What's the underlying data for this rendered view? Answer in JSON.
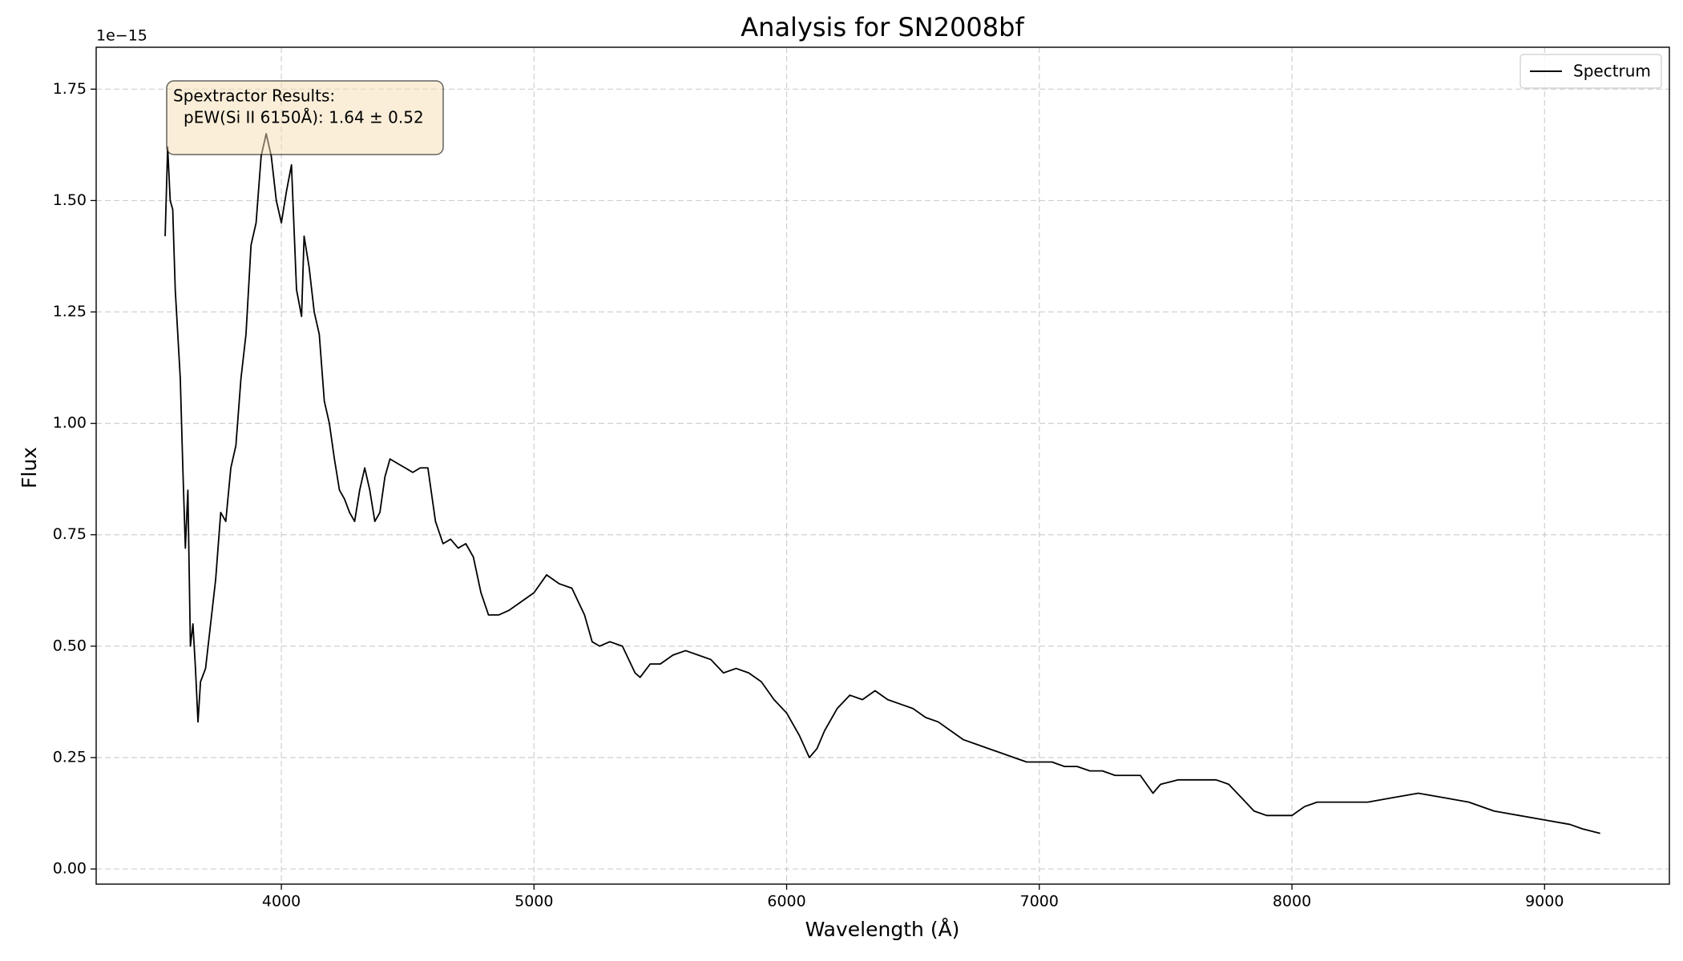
{
  "chart_data": {
    "type": "line",
    "title": "Analysis for SN2008bf",
    "x_label": "Wavelength (Å)",
    "y_label": "Flux",
    "y_offset_label": "1e−15",
    "annotation": [
      "Spextractor Results:",
      "pEW(Si II 6150Å): 1.64 ± 0.52"
    ],
    "legend": "upper right",
    "grid": true,
    "xlim": [
      3267,
      9494
    ],
    "ylim": [
      -0.034,
      1.844
    ],
    "xticks": [
      4000,
      5000,
      6000,
      7000,
      8000,
      9000
    ],
    "yticks": [
      {
        "value": 0,
        "label": "0.00"
      },
      {
        "value": 0.25,
        "label": "0.25"
      },
      {
        "value": 0.5,
        "label": "0.50"
      },
      {
        "value": 0.75,
        "label": "0.75"
      },
      {
        "value": 1,
        "label": "1.00"
      },
      {
        "value": 1.25,
        "label": "1.25"
      },
      {
        "value": 1.5,
        "label": "1.50"
      },
      {
        "value": 1.75,
        "label": "1.75"
      }
    ],
    "x": [
      3540,
      3550,
      3560,
      3570,
      3580,
      3590,
      3600,
      3610,
      3620,
      3630,
      3640,
      3650,
      3660,
      3670,
      3680,
      3700,
      3720,
      3740,
      3760,
      3780,
      3800,
      3820,
      3840,
      3860,
      3880,
      3900,
      3920,
      3940,
      3960,
      3980,
      4000,
      4020,
      4040,
      4060,
      4080,
      4090,
      4110,
      4130,
      4150,
      4170,
      4190,
      4210,
      4230,
      4250,
      4270,
      4290,
      4310,
      4330,
      4350,
      4370,
      4390,
      4410,
      4430,
      4460,
      4490,
      4520,
      4550,
      4580,
      4610,
      4640,
      4670,
      4700,
      4730,
      4760,
      4790,
      4820,
      4860,
      4900,
      4950,
      5000,
      5050,
      5100,
      5150,
      5200,
      5230,
      5260,
      5300,
      5350,
      5400,
      5420,
      5460,
      5500,
      5550,
      5600,
      5650,
      5700,
      5750,
      5800,
      5850,
      5900,
      5950,
      6000,
      6050,
      6090,
      6120,
      6150,
      6200,
      6250,
      6300,
      6350,
      6400,
      6450,
      6500,
      6550,
      6600,
      6650,
      6700,
      6750,
      6800,
      6850,
      6900,
      6950,
      7000,
      7050,
      7100,
      7150,
      7200,
      7250,
      7300,
      7350,
      7400,
      7450,
      7480,
      7550,
      7600,
      7650,
      7700,
      7750,
      7800,
      7850,
      7900,
      7950,
      8000,
      8050,
      8100,
      8200,
      8300,
      8400,
      8500,
      8600,
      8700,
      8800,
      8900,
      9000,
      9100,
      9150,
      9220
    ],
    "series": [
      {
        "name": "Spectrum",
        "color": "#000000",
        "values": [
          1.42,
          1.62,
          1.5,
          1.48,
          1.3,
          1.2,
          1.1,
          0.9,
          0.72,
          0.85,
          0.5,
          0.55,
          0.45,
          0.33,
          0.42,
          0.45,
          0.55,
          0.65,
          0.8,
          0.78,
          0.9,
          0.95,
          1.1,
          1.2,
          1.4,
          1.45,
          1.6,
          1.65,
          1.6,
          1.5,
          1.45,
          1.52,
          1.58,
          1.3,
          1.24,
          1.42,
          1.35,
          1.25,
          1.2,
          1.05,
          1.0,
          0.92,
          0.85,
          0.83,
          0.8,
          0.78,
          0.85,
          0.9,
          0.85,
          0.78,
          0.8,
          0.88,
          0.92,
          0.91,
          0.9,
          0.89,
          0.9,
          0.9,
          0.78,
          0.73,
          0.74,
          0.72,
          0.73,
          0.7,
          0.62,
          0.57,
          0.57,
          0.58,
          0.6,
          0.62,
          0.66,
          0.64,
          0.63,
          0.57,
          0.51,
          0.5,
          0.51,
          0.5,
          0.44,
          0.43,
          0.46,
          0.46,
          0.48,
          0.49,
          0.48,
          0.47,
          0.44,
          0.45,
          0.44,
          0.42,
          0.38,
          0.35,
          0.3,
          0.25,
          0.27,
          0.31,
          0.36,
          0.39,
          0.38,
          0.4,
          0.38,
          0.37,
          0.36,
          0.34,
          0.33,
          0.31,
          0.29,
          0.28,
          0.27,
          0.26,
          0.25,
          0.24,
          0.24,
          0.24,
          0.23,
          0.23,
          0.22,
          0.22,
          0.21,
          0.21,
          0.21,
          0.17,
          0.19,
          0.2,
          0.2,
          0.2,
          0.2,
          0.19,
          0.16,
          0.13,
          0.12,
          0.12,
          0.12,
          0.14,
          0.15,
          0.15,
          0.15,
          0.16,
          0.17,
          0.16,
          0.15,
          0.13,
          0.12,
          0.11,
          0.1,
          0.09,
          0.08
        ]
      }
    ]
  }
}
